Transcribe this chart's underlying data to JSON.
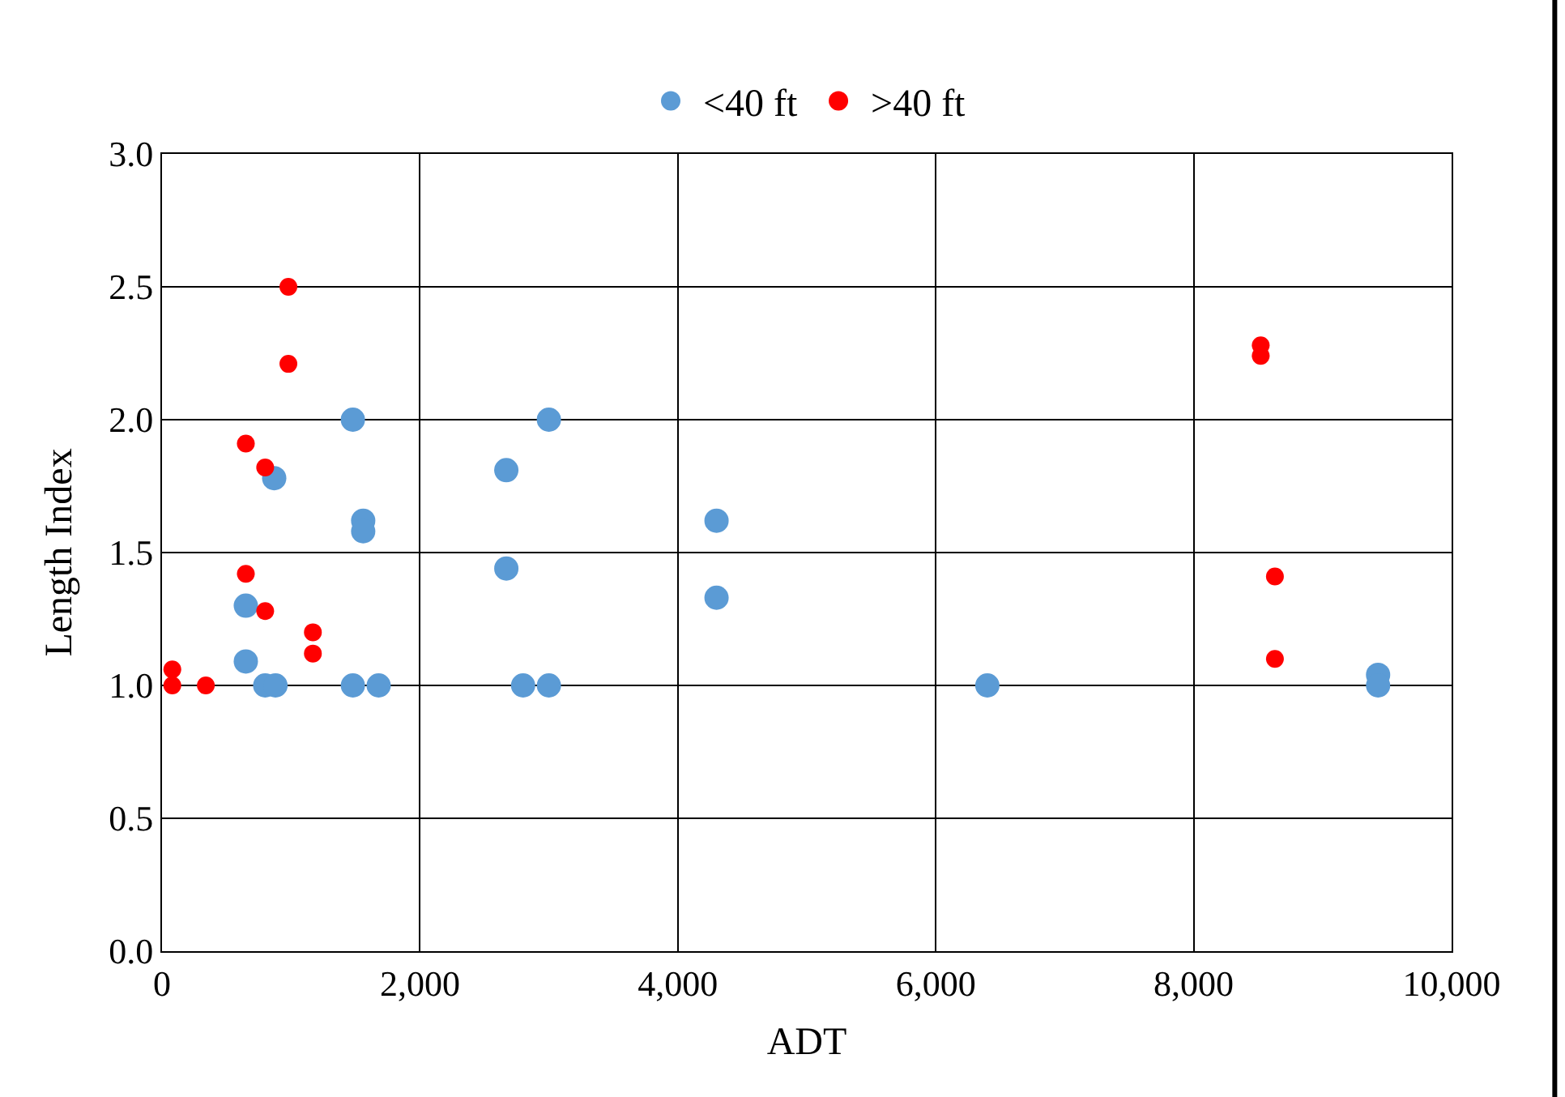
{
  "chart_data": {
    "type": "scatter",
    "xlabel": "ADT",
    "ylabel": "Length Index",
    "xlim": [
      0,
      10000
    ],
    "xticks": [
      {
        "value": 0,
        "label": "0"
      },
      {
        "value": 2000,
        "label": "2,000"
      },
      {
        "value": 4000,
        "label": "4,000"
      },
      {
        "value": 6000,
        "label": "6,000"
      },
      {
        "value": 8000,
        "label": "8,000"
      },
      {
        "value": 10000,
        "label": "10,000"
      }
    ],
    "ylim": [
      0,
      3
    ],
    "yticks": [
      {
        "value": 0,
        "label": "0.0"
      },
      {
        "value": 0.5,
        "label": "0.5"
      },
      {
        "value": 1,
        "label": "1.0"
      },
      {
        "value": 1.5,
        "label": "1.5"
      },
      {
        "value": 2,
        "label": "2.0"
      },
      {
        "value": 2.5,
        "label": "2.5"
      },
      {
        "value": 3,
        "label": "3.0"
      }
    ],
    "grid": true,
    "legend": "top",
    "marker": "circle",
    "series": [
      {
        "name": "<40 ft",
        "color": "#5b9bd5",
        "x": [
          650,
          650,
          800,
          880,
          870,
          1480,
          1560,
          1560,
          1480,
          1680,
          2670,
          2670,
          2800,
          3000,
          3000,
          4300,
          4300,
          6400,
          9430,
          9430
        ],
        "values": [
          1.3,
          1.09,
          1.0,
          1.0,
          1.78,
          2.0,
          1.62,
          1.58,
          1.0,
          1.0,
          1.81,
          1.44,
          1.0,
          2.0,
          1.0,
          1.62,
          1.33,
          1.0,
          1.04,
          1.0
        ]
      },
      {
        "name": ">40 ft",
        "color": "#ff0000",
        "x": [
          80,
          80,
          340,
          650,
          650,
          800,
          800,
          980,
          980,
          1170,
          1170,
          8520,
          8520,
          8630,
          8630
        ],
        "values": [
          1.06,
          1.0,
          1.0,
          1.91,
          1.42,
          1.82,
          1.28,
          2.5,
          2.21,
          1.2,
          1.12,
          2.28,
          2.24,
          1.41,
          1.1
        ]
      }
    ]
  }
}
